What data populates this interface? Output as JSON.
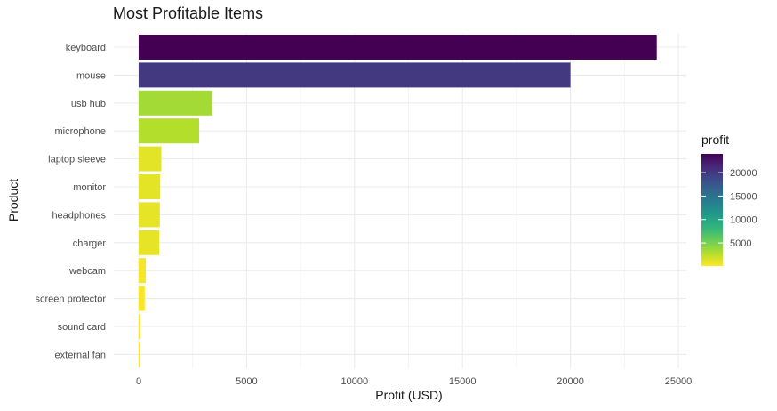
{
  "chart_data": {
    "type": "bar",
    "orientation": "horizontal",
    "title": "Most Profitable Items",
    "xlabel": "Profit (USD)",
    "ylabel": "Product",
    "xlim": [
      0,
      25000
    ],
    "x_ticks": [
      0,
      5000,
      10000,
      15000,
      20000,
      25000
    ],
    "grid": true,
    "categories": [
      "keyboard",
      "mouse",
      "usb hub",
      "microphone",
      "laptop sleeve",
      "monitor",
      "headphones",
      "charger",
      "webcam",
      "screen protector",
      "sound card",
      "external fan"
    ],
    "values": [
      24000,
      20000,
      3400,
      2800,
      1050,
      1000,
      980,
      950,
      330,
      280,
      90,
      80
    ],
    "legend": {
      "title": "profit",
      "placement": "right",
      "ticks": [
        5000,
        10000,
        15000,
        20000
      ],
      "range": [
        80,
        24000
      ],
      "palette": [
        "#fde725",
        "#b5de2b",
        "#6ece58",
        "#35b779",
        "#1f9e89",
        "#26828e",
        "#31688e",
        "#3e4989",
        "#482878",
        "#440154"
      ]
    }
  }
}
